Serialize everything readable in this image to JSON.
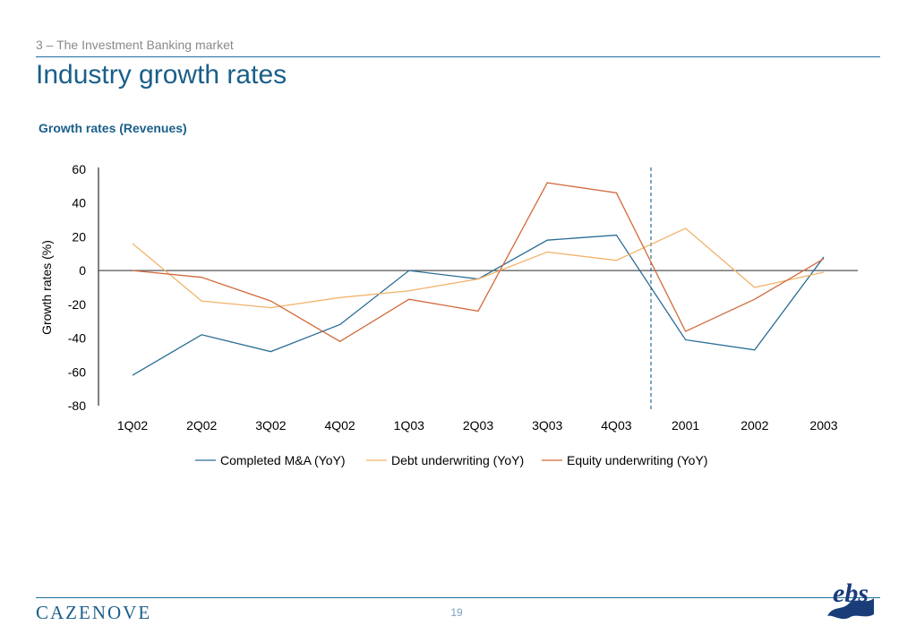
{
  "header": {
    "section_label": "3 – The Investment Banking market",
    "title": "Industry growth rates"
  },
  "chart_heading": "Growth rates (Revenues)",
  "footer": {
    "brand": "CAZENOVE",
    "page_number": "19",
    "logo_text": "ebs"
  },
  "colors": {
    "accent": "#1a5f8a",
    "completed_ma": "#2a6d96",
    "debt": "#f2b36b",
    "equity": "#d2693b"
  },
  "chart_data": {
    "type": "line",
    "title": "",
    "xlabel": "",
    "ylabel": "Growth rates (%)",
    "categories": [
      "1Q02",
      "2Q02",
      "3Q02",
      "4Q02",
      "1Q03",
      "2Q03",
      "3Q03",
      "4Q03",
      "2001",
      "2002",
      "2003"
    ],
    "ylim": [
      -80,
      60
    ],
    "yticks": [
      60,
      40,
      20,
      0,
      -20,
      -40,
      -60,
      -80
    ],
    "divider_after_category": "4Q03",
    "legend_position": "bottom",
    "series": [
      {
        "name": "Completed M&A (YoY)",
        "color": "#2a6d96",
        "values": [
          -62,
          -38,
          -48,
          -32,
          0,
          -5,
          18,
          21,
          -41,
          -47,
          8
        ]
      },
      {
        "name": "Debt underwriting (YoY)",
        "color": "#f2b36b",
        "values": [
          16,
          -18,
          -22,
          -16,
          -12,
          -5,
          11,
          6,
          25,
          -10,
          -1
        ]
      },
      {
        "name": "Equity underwriting (YoY)",
        "color": "#d2693b",
        "values": [
          0,
          -4,
          -18,
          -42,
          -17,
          -24,
          52,
          46,
          -36,
          -17,
          7
        ]
      }
    ]
  }
}
